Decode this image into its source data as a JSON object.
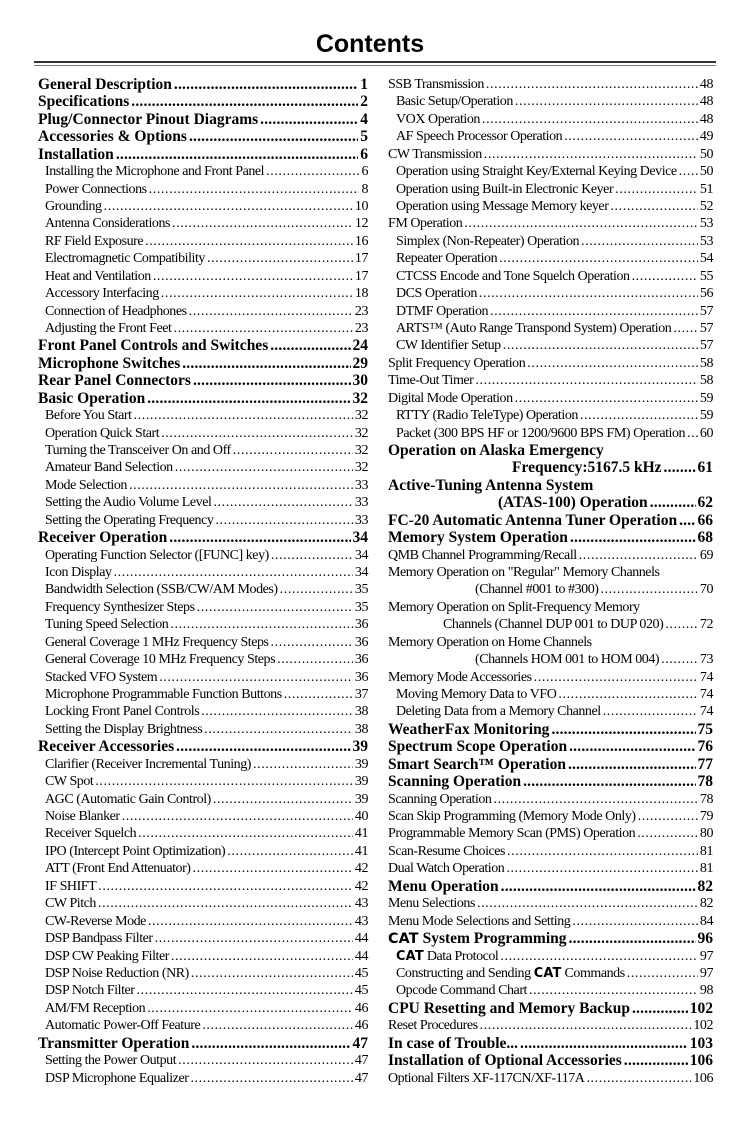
{
  "title": "Contents",
  "left": [
    {
      "k": "h",
      "t": "General Description",
      "p": "1"
    },
    {
      "k": "h",
      "t": "Specifications",
      "p": "2"
    },
    {
      "k": "h",
      "t": "Plug/Connector Pinout Diagrams",
      "p": "4"
    },
    {
      "k": "h",
      "t": "Accessories & Options",
      "p": "5"
    },
    {
      "k": "h",
      "t": "Installation",
      "p": "6"
    },
    {
      "k": "n0",
      "t": "Installing the Microphone and Front Panel",
      "p": "6"
    },
    {
      "k": "n0",
      "t": "Power Connections",
      "p": "8"
    },
    {
      "k": "n0",
      "t": "Grounding",
      "p": "10"
    },
    {
      "k": "n0",
      "t": "Antenna Considerations",
      "p": "12"
    },
    {
      "k": "n0",
      "t": "RF Field Exposure",
      "p": "16"
    },
    {
      "k": "n0",
      "t": "Electromagnetic Compatibility",
      "p": "17"
    },
    {
      "k": "n0",
      "t": "Heat and Ventilation",
      "p": "17"
    },
    {
      "k": "n0",
      "t": "Accessory Interfacing",
      "p": "18"
    },
    {
      "k": "n0",
      "t": "Connection of Headphones",
      "p": "23"
    },
    {
      "k": "n0",
      "t": "Adjusting the Front Feet",
      "p": "23"
    },
    {
      "k": "h",
      "t": "Front Panel Controls and Switches",
      "p": "24"
    },
    {
      "k": "h",
      "t": "Microphone Switches",
      "p": "29"
    },
    {
      "k": "h",
      "t": "Rear Panel Connectors",
      "p": "30"
    },
    {
      "k": "h",
      "t": "Basic Operation",
      "p": "32"
    },
    {
      "k": "n0",
      "t": "Before You Start",
      "p": "32"
    },
    {
      "k": "n0",
      "t": "Operation Quick Start",
      "p": "32"
    },
    {
      "k": "n0",
      "t": "Turning the Transceiver On and Off",
      "p": "32"
    },
    {
      "k": "n0",
      "t": "Amateur Band Selection",
      "p": "32"
    },
    {
      "k": "n0",
      "t": "Mode Selection",
      "p": "33"
    },
    {
      "k": "n0",
      "t": "Setting the Audio Volume Level",
      "p": "33"
    },
    {
      "k": "n0",
      "t": "Setting the Operating Frequency",
      "p": "33"
    },
    {
      "k": "h",
      "t": "Receiver Operation",
      "p": "34"
    },
    {
      "k": "n0",
      "t": "Operating Function Selector ([FUNC] key)",
      "p": "34"
    },
    {
      "k": "n0",
      "t": "Icon Display",
      "p": "34"
    },
    {
      "k": "n0",
      "t": "Bandwidth Selection (SSB/CW/AM Modes)",
      "p": "35"
    },
    {
      "k": "n0",
      "t": "Frequency Synthesizer Steps",
      "p": "35"
    },
    {
      "k": "n0",
      "t": "Tuning Speed Selection",
      "p": "36"
    },
    {
      "k": "n0",
      "t": "General Coverage 1 MHz Frequency Steps",
      "p": "36"
    },
    {
      "k": "n0",
      "t": "General Coverage 10 MHz Frequency Steps",
      "p": "36"
    },
    {
      "k": "n0",
      "t": "Stacked VFO System",
      "p": "36"
    },
    {
      "k": "n0",
      "t": "Microphone Programmable Function Buttons",
      "p": "37"
    },
    {
      "k": "n0",
      "t": "Locking Front Panel Controls",
      "p": "38"
    },
    {
      "k": "n0",
      "t": "Setting the Display Brightness",
      "p": "38"
    },
    {
      "k": "h",
      "t": "Receiver Accessories",
      "p": "39"
    },
    {
      "k": "n0",
      "t": "Clarifier (Receiver Incremental Tuning)",
      "p": "39"
    },
    {
      "k": "n0",
      "t": "CW Spot",
      "p": "39"
    },
    {
      "k": "n0",
      "t": "AGC (Automatic Gain Control)",
      "p": "39"
    },
    {
      "k": "n0",
      "t": "Noise Blanker",
      "p": "40"
    },
    {
      "k": "n0",
      "t": "Receiver Squelch",
      "p": "41"
    },
    {
      "k": "n0",
      "t": "IPO (Intercept Point Optimization)",
      "p": "41"
    },
    {
      "k": "n0",
      "t": "ATT (Front End Attenuator)",
      "p": "42"
    },
    {
      "k": "n0",
      "t": "IF SHIFT",
      "p": "42"
    },
    {
      "k": "n0",
      "t": "CW Pitch",
      "p": "43"
    },
    {
      "k": "n0",
      "t": "CW-Reverse Mode",
      "p": "43"
    },
    {
      "k": "n0",
      "t": "DSP Bandpass Filter",
      "p": "44"
    },
    {
      "k": "n0",
      "t": "DSP CW Peaking Filter",
      "p": "44"
    },
    {
      "k": "n0",
      "t": "DSP Noise Reduction (NR)",
      "p": "45"
    },
    {
      "k": "n0",
      "t": "DSP Notch Filter",
      "p": "45"
    },
    {
      "k": "n0",
      "t": "AM/FM Reception",
      "p": "46"
    },
    {
      "k": "n0",
      "t": "Automatic Power-Off Feature",
      "p": "46"
    },
    {
      "k": "h",
      "t": "Transmitter Operation",
      "p": "47"
    },
    {
      "k": "n0",
      "t": "Setting the Power Output",
      "p": "47"
    },
    {
      "k": "n0",
      "t": "DSP Microphone Equalizer",
      "p": "47"
    }
  ],
  "right": [
    {
      "k": "n0",
      "t": "SSB Transmission",
      "p": "48"
    },
    {
      "k": "n1",
      "t": "Basic Setup/Operation",
      "p": "48"
    },
    {
      "k": "n1",
      "t": "VOX Operation",
      "p": "48"
    },
    {
      "k": "n1",
      "t": "AF Speech Processor Operation",
      "p": "49"
    },
    {
      "k": "n0",
      "t": "CW Transmission",
      "p": "50"
    },
    {
      "k": "n1",
      "t": "Operation using Straight Key/External Keying Device",
      "p": "50"
    },
    {
      "k": "n1",
      "t": "Operation using Built-in Electronic Keyer",
      "p": "51"
    },
    {
      "k": "n1",
      "t": "Operation using Message Memory keyer",
      "p": "52"
    },
    {
      "k": "n0",
      "t": "FM Operation",
      "p": "53"
    },
    {
      "k": "n1",
      "t": "Simplex (Non-Repeater) Operation",
      "p": "53"
    },
    {
      "k": "n1",
      "t": "Repeater Operation",
      "p": "54"
    },
    {
      "k": "n1",
      "t": "CTCSS Encode and Tone Squelch Operation",
      "p": "55"
    },
    {
      "k": "n1",
      "t": "DCS Operation",
      "p": "56"
    },
    {
      "k": "n1",
      "t": "DTMF Operation",
      "p": "57"
    },
    {
      "k": "n1",
      "t": "ARTS™ (Auto Range Transpond System) Operation",
      "p": "57"
    },
    {
      "k": "n1",
      "t": "CW Identifier Setup",
      "p": "57"
    },
    {
      "k": "n0",
      "t": "Split Frequency Operation",
      "p": "58"
    },
    {
      "k": "n0",
      "t": "Time-Out Timer",
      "p": "58"
    },
    {
      "k": "n0",
      "t": "Digital Mode Operation",
      "p": "59"
    },
    {
      "k": "n1",
      "t": "RTTY (Radio TeleType) Operation",
      "p": "59"
    },
    {
      "k": "n1",
      "t": "Packet (300 BPS HF or 1200/9600 BPS FM) Operation",
      "p": "60"
    },
    {
      "k": "h",
      "t": "Operation on Alaska Emergency",
      "p": ""
    },
    {
      "k": "h ch1",
      "t": "Frequency:5167.5 kHz",
      "p": "61"
    },
    {
      "k": "h",
      "t": "Active-Tuning Antenna System",
      "p": ""
    },
    {
      "k": "h ch2",
      "t": "(ATAS-100) Operation",
      "p": "62"
    },
    {
      "k": "h",
      "t": "FC-20 Automatic Antenna Tuner Operation",
      "p": "66"
    },
    {
      "k": "h",
      "t": "Memory System Operation",
      "p": "68"
    },
    {
      "k": "n0",
      "t": "QMB Channel Programming/Recall",
      "p": "69"
    },
    {
      "k": "n0",
      "t": "Memory Operation on \"Regular\" Memory Channels",
      "p": ""
    },
    {
      "k": "c1",
      "t": "(Channel #001 to #300)",
      "p": "70"
    },
    {
      "k": "n0",
      "t": "Memory Operation on Split-Frequency Memory",
      "p": ""
    },
    {
      "k": "c2",
      "t": "Channels (Channel DUP 001 to DUP 020)",
      "p": "72"
    },
    {
      "k": "n0",
      "t": "Memory Operation on Home Channels",
      "p": ""
    },
    {
      "k": "c1",
      "t": "(Channels HOM 001 to HOM 004)",
      "p": "73"
    },
    {
      "k": "n0",
      "t": "Memory Mode Accessories",
      "p": "74"
    },
    {
      "k": "n1",
      "t": "Moving Memory Data to VFO",
      "p": "74"
    },
    {
      "k": "n1",
      "t": "Deleting Data from a Memory Channel",
      "p": "74"
    },
    {
      "k": "h",
      "t": "WeatherFax Monitoring",
      "p": "75"
    },
    {
      "k": "h",
      "t": "Spectrum Scope Operation",
      "p": "76"
    },
    {
      "k": "h",
      "t": "Smart Search™ Operation",
      "p": "77"
    },
    {
      "k": "h",
      "t": "Scanning Operation",
      "p": "78"
    },
    {
      "k": "n0",
      "t": "Scanning Operation",
      "p": "78"
    },
    {
      "k": "n0",
      "t": "Scan Skip Programming (Memory Mode Only)",
      "p": "79"
    },
    {
      "k": "n0",
      "t": "Programmable Memory Scan (PMS) Operation",
      "p": "80"
    },
    {
      "k": "n0",
      "t": "Scan-Resume Choices",
      "p": "81"
    },
    {
      "k": "n0",
      "t": "Dual Watch Operation",
      "p": "81"
    },
    {
      "k": "h",
      "t": "Menu Operation",
      "p": "82"
    },
    {
      "k": "n0",
      "t": "Menu Selections",
      "p": "82"
    },
    {
      "k": "n0",
      "t": "Menu Mode Selections and Setting",
      "p": "84"
    },
    {
      "k": "h",
      "t": "",
      "b": "CAT",
      "a": " System Programming",
      "p": "96"
    },
    {
      "k": "n1",
      "t": "",
      "b": "CAT",
      "a": " Data Protocol",
      "p": "97"
    },
    {
      "k": "n1",
      "t": "Constructing and Sending ",
      "b": "CAT",
      "a": " Commands",
      "p": "97"
    },
    {
      "k": "n1",
      "t": "Opcode Command Chart",
      "p": "98"
    },
    {
      "k": "h",
      "t": "CPU Resetting and Memory Backup",
      "p": "102"
    },
    {
      "k": "n0",
      "t": "Reset Procedures",
      "p": "102"
    },
    {
      "k": "h",
      "t": "In case of Trouble...",
      "p": "103"
    },
    {
      "k": "h",
      "t": "Installation of Optional Accessories",
      "p": "106"
    },
    {
      "k": "n0",
      "t": "Optional Filters XF-117CN/XF-117A",
      "p": "106"
    }
  ]
}
